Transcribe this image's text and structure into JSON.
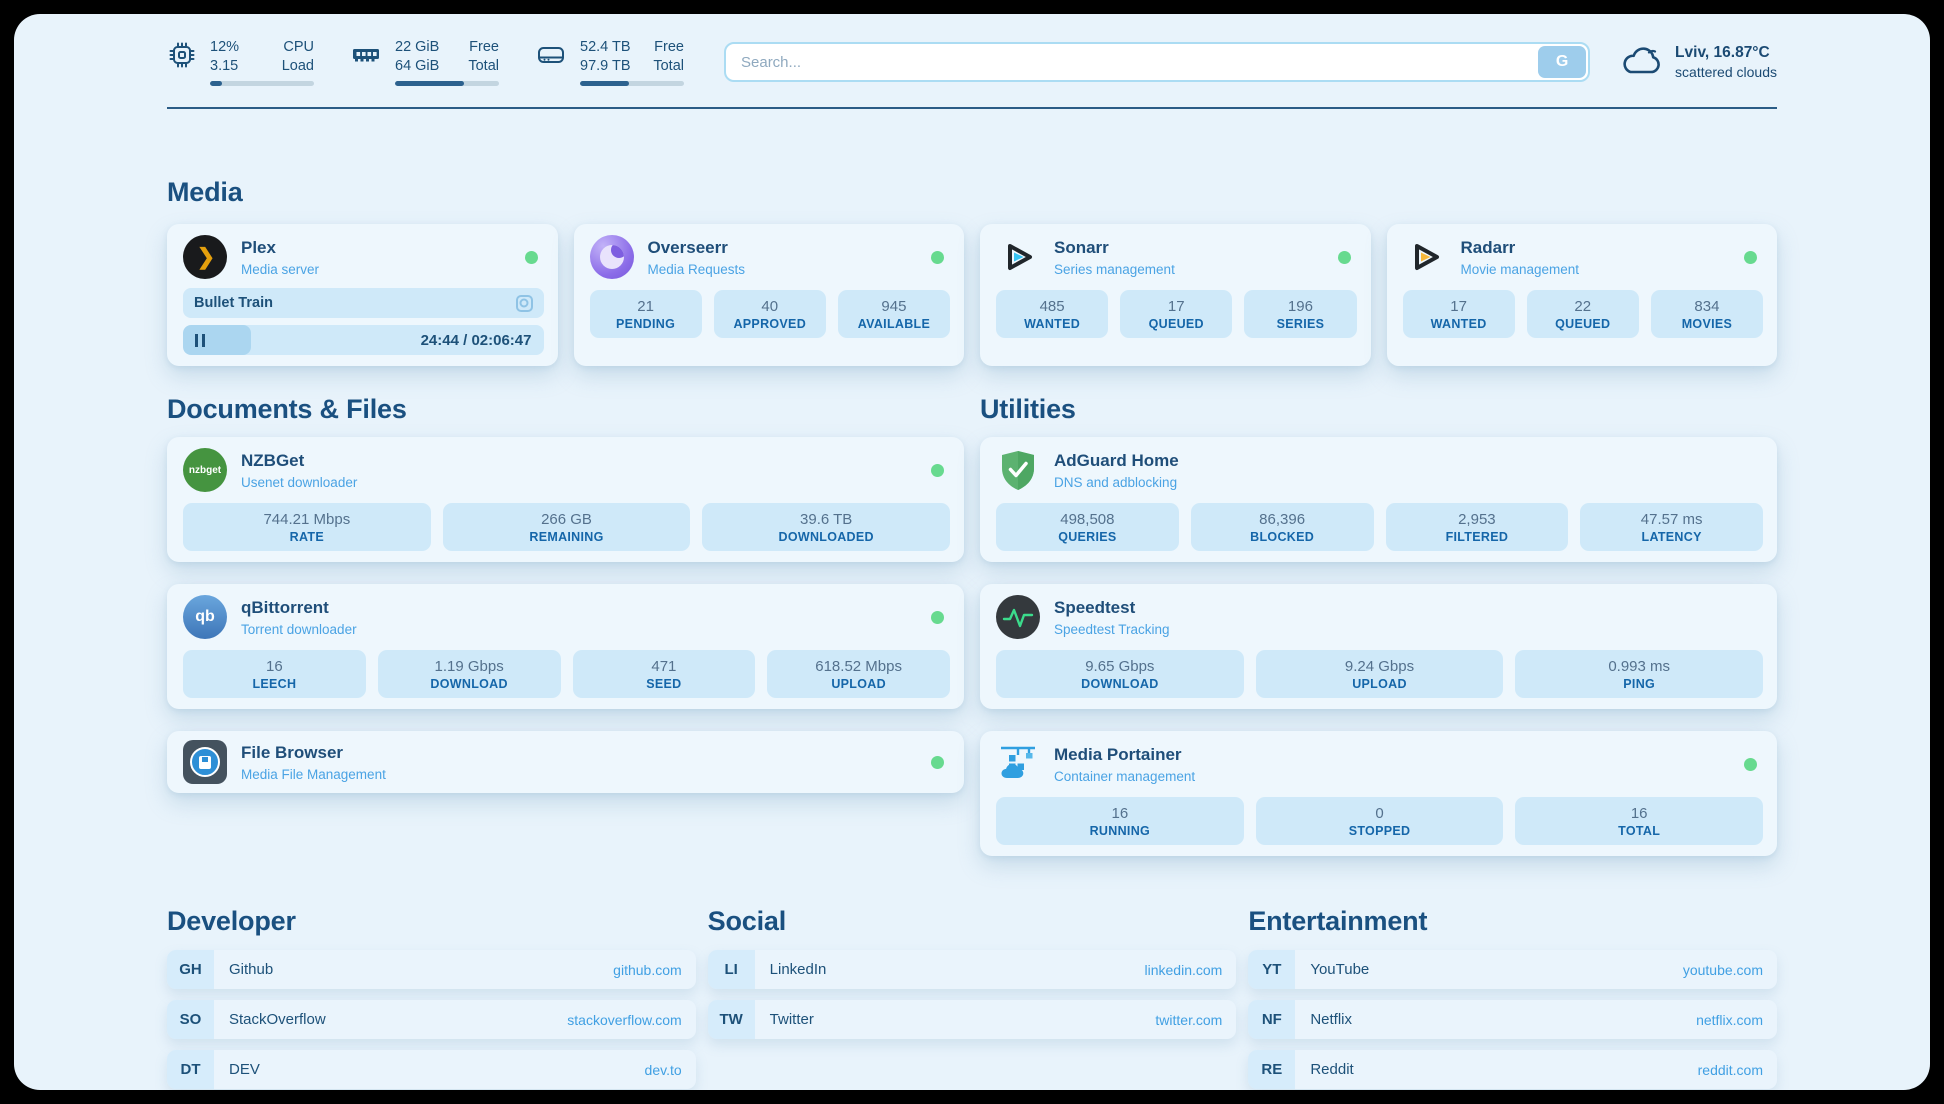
{
  "header": {
    "system_stats": [
      {
        "icon": "cpu-icon",
        "values": [
          "12%",
          "3.15"
        ],
        "labels": [
          "CPU",
          "Load"
        ],
        "progress_pct": 12
      },
      {
        "icon": "ram-icon",
        "values": [
          "22 GiB",
          "64 GiB"
        ],
        "labels": [
          "Free",
          "Total"
        ],
        "progress_pct": 66
      },
      {
        "icon": "disk-icon",
        "values": [
          "52.4 TB",
          "97.9 TB"
        ],
        "labels": [
          "Free",
          "Total"
        ],
        "progress_pct": 47
      }
    ],
    "search": {
      "placeholder": "Search...",
      "button_label": "G"
    },
    "weather": {
      "icon": "cloud-icon",
      "location": "Lviv, 16.87°C",
      "condition": "scattered clouds"
    }
  },
  "icon_labels": {
    "nzbget": "nzbget",
    "qbittorrent": "qb",
    "plex_chevron": "❯"
  },
  "sections": {
    "media": {
      "title": "Media",
      "plex": {
        "name": "Plex",
        "description": "Media server",
        "status": "online",
        "now_playing": "Bullet Train",
        "time": "24:44 / 02:06:47",
        "progress_pct": 19
      },
      "overseerr": {
        "name": "Overseerr",
        "description": "Media Requests",
        "status": "online",
        "stats": [
          {
            "value": "21",
            "label": "PENDING"
          },
          {
            "value": "40",
            "label": "APPROVED"
          },
          {
            "value": "945",
            "label": "AVAILABLE"
          }
        ]
      },
      "sonarr": {
        "name": "Sonarr",
        "description": "Series management",
        "status": "online",
        "stats": [
          {
            "value": "485",
            "label": "WANTED"
          },
          {
            "value": "17",
            "label": "QUEUED"
          },
          {
            "value": "196",
            "label": "SERIES"
          }
        ]
      },
      "radarr": {
        "name": "Radarr",
        "description": "Movie management",
        "status": "online",
        "stats": [
          {
            "value": "17",
            "label": "WANTED"
          },
          {
            "value": "22",
            "label": "QUEUED"
          },
          {
            "value": "834",
            "label": "MOVIES"
          }
        ]
      }
    },
    "documents": {
      "title": "Documents & Files",
      "nzbget": {
        "name": "NZBGet",
        "description": "Usenet downloader",
        "status": "online",
        "stats": [
          {
            "value": "744.21 Mbps",
            "label": "RATE"
          },
          {
            "value": "266 GB",
            "label": "REMAINING"
          },
          {
            "value": "39.6 TB",
            "label": "DOWNLOADED"
          }
        ]
      },
      "qbittorrent": {
        "name": "qBittorrent",
        "description": "Torrent downloader",
        "status": "online",
        "stats": [
          {
            "value": "16",
            "label": "LEECH"
          },
          {
            "value": "1.19 Gbps",
            "label": "DOWNLOAD"
          },
          {
            "value": "471",
            "label": "SEED"
          },
          {
            "value": "618.52 Mbps",
            "label": "UPLOAD"
          }
        ]
      },
      "filebrowser": {
        "name": "File Browser",
        "description": "Media File Management",
        "status": "online"
      }
    },
    "utilities": {
      "title": "Utilities",
      "adguard": {
        "name": "AdGuard Home",
        "description": "DNS and adblocking",
        "stats": [
          {
            "value": "498,508",
            "label": "QUERIES"
          },
          {
            "value": "86,396",
            "label": "BLOCKED"
          },
          {
            "value": "2,953",
            "label": "FILTERED"
          },
          {
            "value": "47.57 ms",
            "label": "LATENCY"
          }
        ]
      },
      "speedtest": {
        "name": "Speedtest",
        "description": "Speedtest Tracking",
        "stats": [
          {
            "value": "9.65 Gbps",
            "label": "DOWNLOAD"
          },
          {
            "value": "9.24 Gbps",
            "label": "UPLOAD"
          },
          {
            "value": "0.993 ms",
            "label": "PING"
          }
        ]
      },
      "portainer": {
        "name": "Media Portainer",
        "description": "Container management",
        "status": "online",
        "stats": [
          {
            "value": "16",
            "label": "RUNNING"
          },
          {
            "value": "0",
            "label": "STOPPED"
          },
          {
            "value": "16",
            "label": "TOTAL"
          }
        ]
      }
    },
    "links": {
      "developer": {
        "title": "Developer",
        "items": [
          {
            "abbr": "GH",
            "name": "Github",
            "url": "github.com"
          },
          {
            "abbr": "SO",
            "name": "StackOverflow",
            "url": "stackoverflow.com"
          },
          {
            "abbr": "DT",
            "name": "DEV",
            "url": "dev.to"
          }
        ]
      },
      "social": {
        "title": "Social",
        "items": [
          {
            "abbr": "LI",
            "name": "LinkedIn",
            "url": "linkedin.com"
          },
          {
            "abbr": "TW",
            "name": "Twitter",
            "url": "twitter.com"
          }
        ]
      },
      "entertainment": {
        "title": "Entertainment",
        "items": [
          {
            "abbr": "YT",
            "name": "YouTube",
            "url": "youtube.com"
          },
          {
            "abbr": "NF",
            "name": "Netflix",
            "url": "netflix.com"
          },
          {
            "abbr": "RE",
            "name": "Reddit",
            "url": "reddit.com"
          }
        ]
      }
    }
  },
  "colors": {
    "accent_navy": "#1d5179",
    "link_blue": "#41a0e3",
    "status_online_green": "#67da8f",
    "stat_label_blue": "#1566a9"
  }
}
